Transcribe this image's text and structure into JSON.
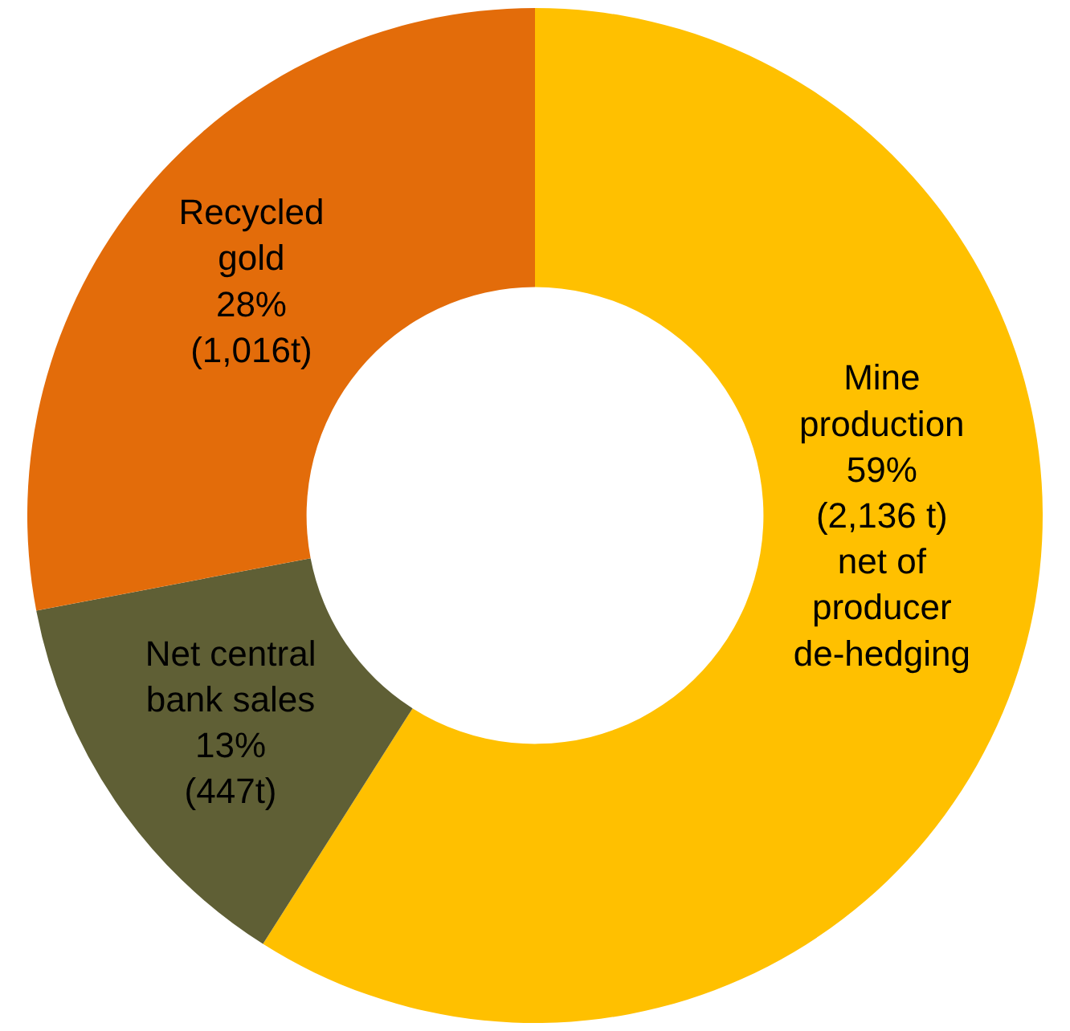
{
  "chart_data": {
    "type": "donut",
    "categories": [
      "Mine\nproduction",
      "Net central\nbank sales",
      "Recycled\ngold"
    ],
    "values": [
      59,
      13,
      28
    ],
    "colors": [
      "#ffc000",
      "#5f5f35",
      "#e36c0a"
    ],
    "value_labels": [
      "59%\n(2,136 t)\nnet of\nproducer\nde-hedging",
      "13%\n(447t)",
      "28%\n(1,016t)"
    ],
    "legend": false
  }
}
